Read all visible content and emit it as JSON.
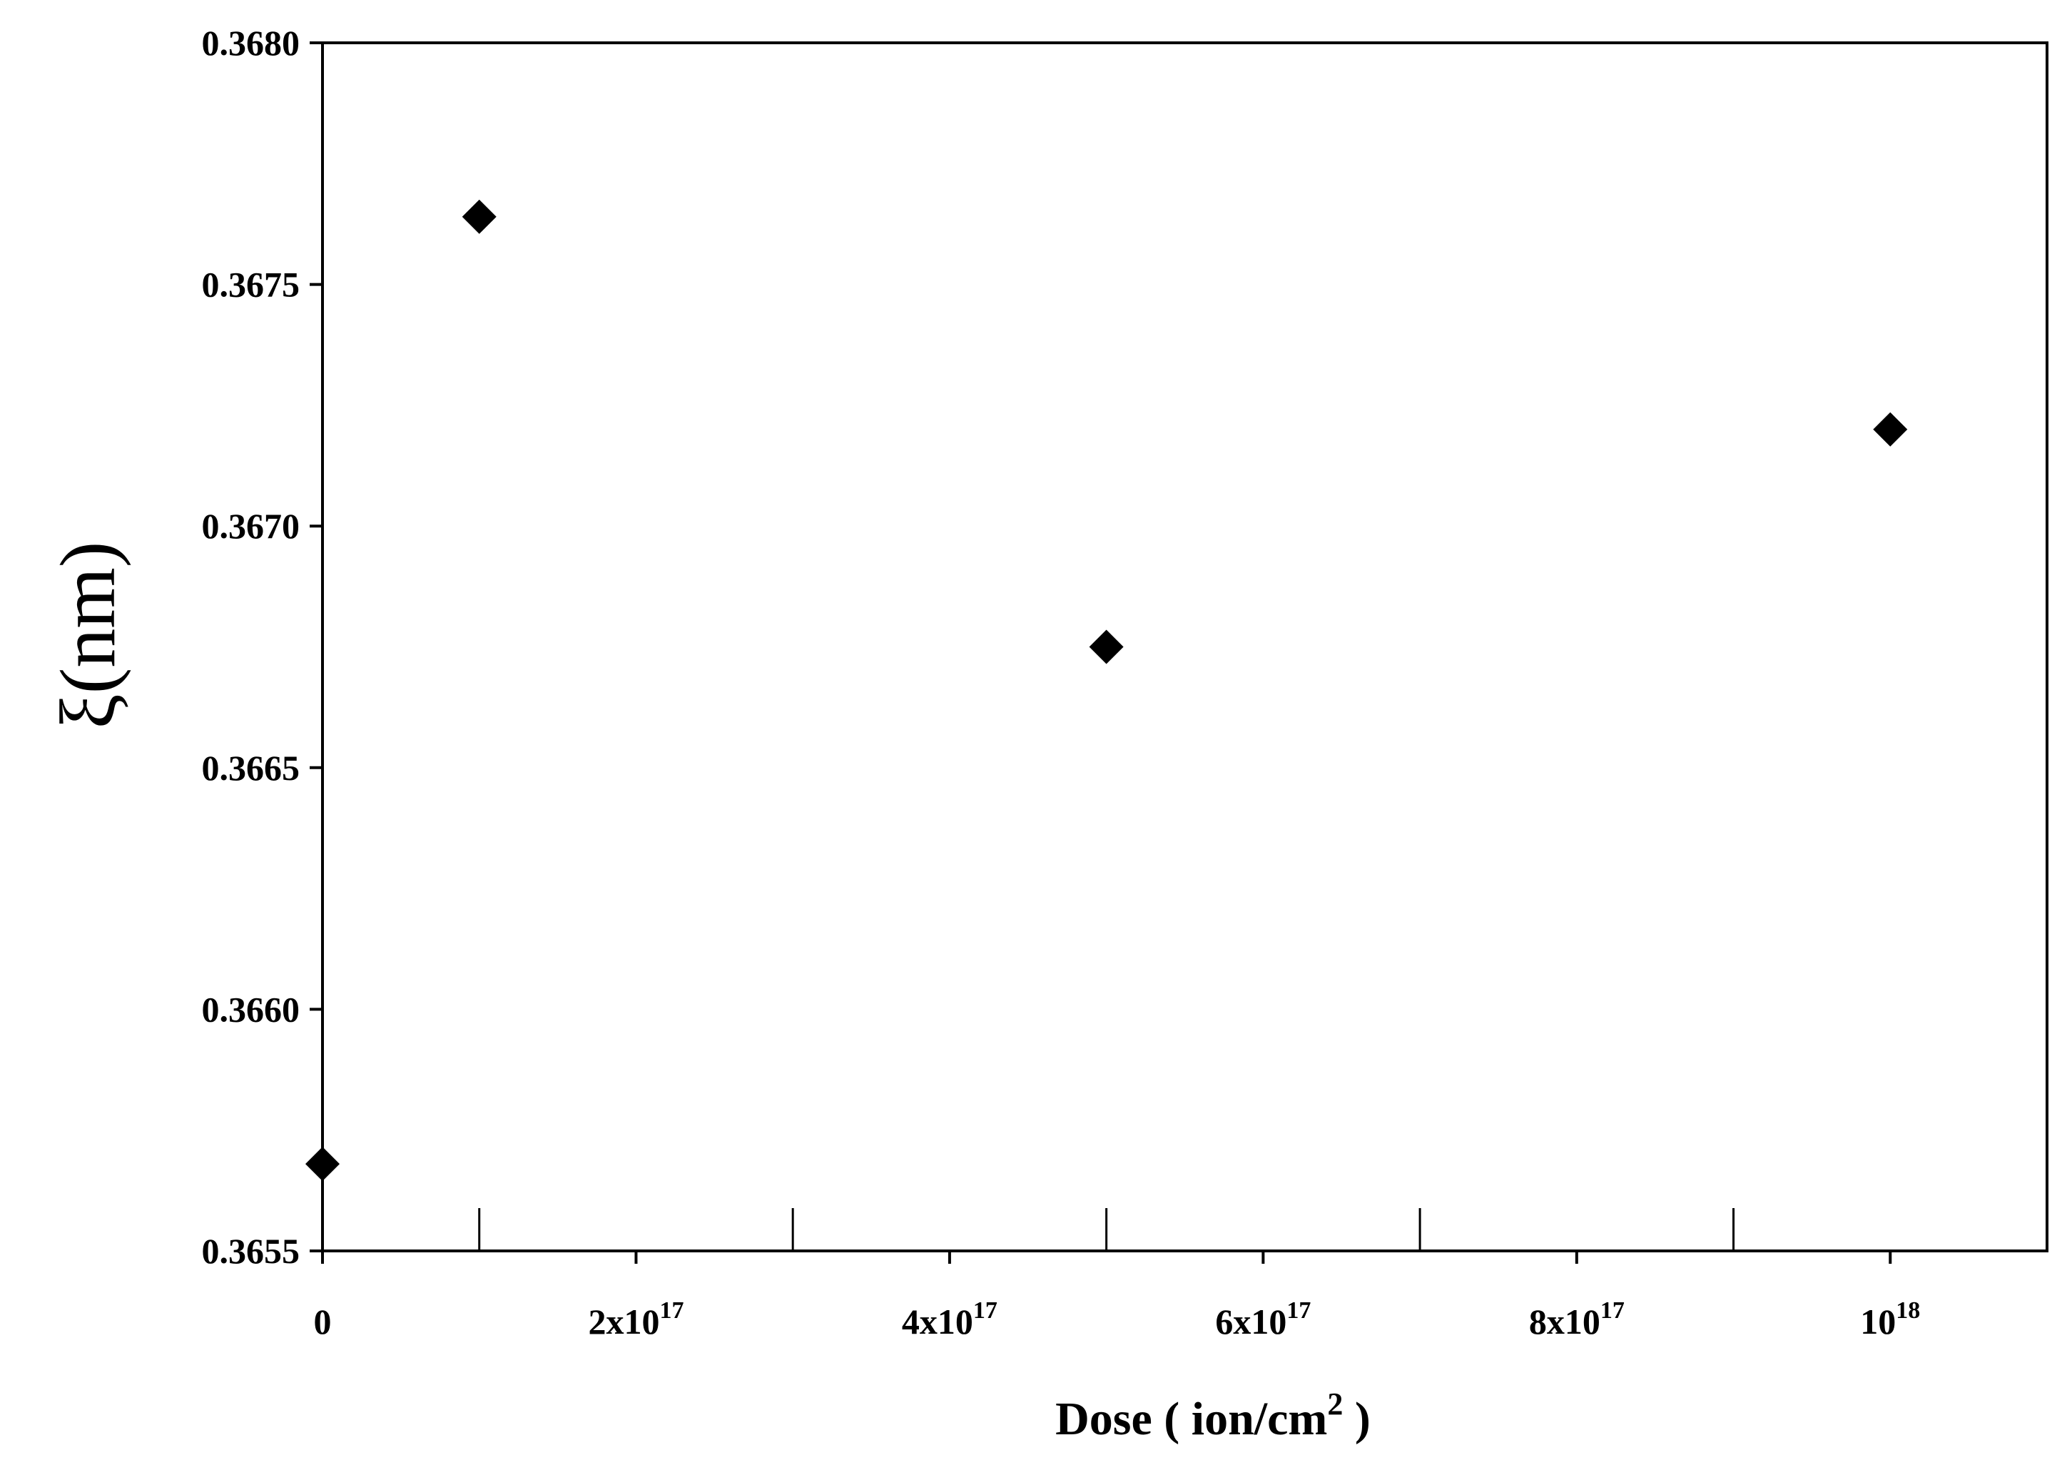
{
  "chart_data": {
    "type": "scatter",
    "xlabel": {
      "text": "Dose ( ion/cm",
      "sup": "2",
      "tail": " )"
    },
    "ylabel": "ξ(nm)",
    "x": [
      0,
      100000000000000000,
      500000000000000000,
      1000000000000000000
    ],
    "values": [
      0.36568,
      0.36764,
      0.36675,
      0.3672
    ],
    "color": "#000000",
    "marker": "diamond",
    "xlim": [
      0,
      1100000000000000000
    ],
    "ylim": [
      0.3655,
      0.368
    ],
    "xticks": [
      0,
      {
        "value": 200000000000000000,
        "label": "2x10",
        "sup": "17"
      },
      {
        "value": 400000000000000000,
        "label": "4x10",
        "sup": "17"
      },
      {
        "value": 600000000000000000,
        "label": "6x10",
        "sup": "17"
      },
      {
        "value": 800000000000000000,
        "label": "8x10",
        "sup": "17"
      },
      {
        "value": 1000000000000000000,
        "label": "10",
        "sup": "18"
      }
    ],
    "xminorticks": [
      100000000000000000,
      300000000000000000,
      500000000000000000,
      700000000000000000,
      900000000000000000
    ],
    "yticks": [
      0.3655,
      {
        "value": 0.366,
        "label": "0.3660"
      },
      0.3665,
      {
        "value": 0.367,
        "label": "0.3670"
      },
      0.3675,
      {
        "value": 0.368,
        "label": "0.3680"
      }
    ],
    "grid": false
  }
}
